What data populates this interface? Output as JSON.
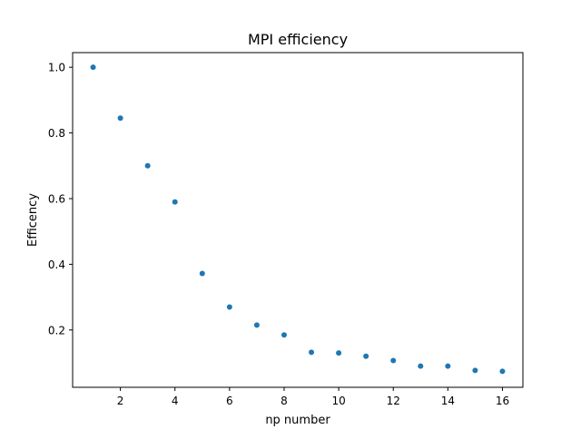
{
  "chart_data": {
    "type": "scatter",
    "title": "MPI efficiency",
    "xlabel": "np number",
    "ylabel": "Efficency",
    "xlim": [
      0.25,
      16.75
    ],
    "ylim": [
      0.0254,
      1.0446
    ],
    "xticks": [
      2,
      4,
      6,
      8,
      10,
      12,
      14,
      16
    ],
    "xtick_labels": [
      "2",
      "4",
      "6",
      "8",
      "10",
      "12",
      "14",
      "16"
    ],
    "yticks": [
      0.2,
      0.4,
      0.6,
      0.8,
      1.0
    ],
    "ytick_labels": [
      "0.2",
      "0.4",
      "0.6",
      "0.8",
      "1.0"
    ],
    "grid": false,
    "color": "#1f77b4",
    "x": [
      1,
      2,
      3,
      4,
      5,
      6,
      7,
      8,
      9,
      10,
      11,
      12,
      13,
      14,
      15,
      16
    ],
    "y": [
      1.0,
      0.845,
      0.7,
      0.59,
      0.372,
      0.27,
      0.215,
      0.185,
      0.132,
      0.13,
      0.12,
      0.107,
      0.09,
      0.09,
      0.077,
      0.074
    ]
  }
}
